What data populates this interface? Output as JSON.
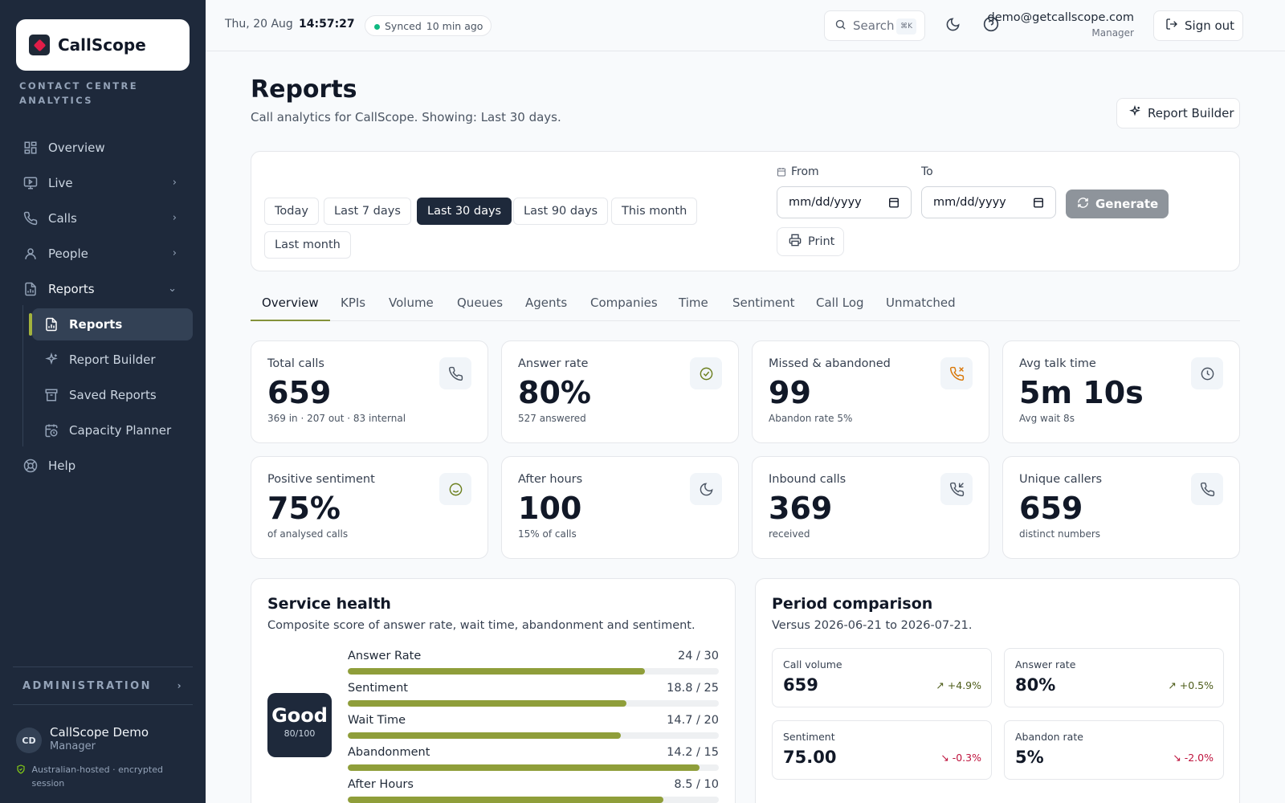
{
  "app": {
    "name": "CallScope",
    "tagline": "CONTACT CENTRE ANALYTICS"
  },
  "sidebar": {
    "items": [
      {
        "label": "Overview",
        "icon": "grid-icon"
      },
      {
        "label": "Live",
        "icon": "monitor-icon"
      },
      {
        "label": "Calls",
        "icon": "phone-icon"
      },
      {
        "label": "People",
        "icon": "users-icon"
      },
      {
        "label": "Reports",
        "icon": "report-icon"
      }
    ],
    "sub_items": [
      {
        "label": "Reports",
        "icon": "report-icon"
      },
      {
        "label": "Report Builder",
        "icon": "sparkle-icon"
      },
      {
        "label": "Saved Reports",
        "icon": "archive-icon"
      },
      {
        "label": "Capacity Planner",
        "icon": "calendar-clock-icon"
      }
    ],
    "help": "Help",
    "admin": "ADMINISTRATION",
    "user": {
      "initials": "CD",
      "name": "CallScope Demo",
      "role": "Manager"
    },
    "secure_note": "Australian-hosted · encrypted session"
  },
  "topbar": {
    "date": "Thu, 20 Aug",
    "time": "14:57:27",
    "sync_status": "Synced",
    "sync_age": "10 min ago",
    "search_label": "Search",
    "search_kbd": "⌘K",
    "email": "demo@getcallscope.com",
    "role": "Manager",
    "signout": "Sign out"
  },
  "page": {
    "title": "Reports",
    "subtitle": "Call analytics for CallScope. Showing: Last 30 days.",
    "report_builder": "Report Builder"
  },
  "filters": {
    "ranges": [
      "Today",
      "Last 7 days",
      "Last 30 days",
      "Last 90 days",
      "This month",
      "Last month"
    ],
    "active_range": "Last 30 days",
    "from_label": "From",
    "to_label": "To",
    "from_placeholder": "mm/dd/yyyy",
    "to_placeholder": "mm/dd/yyyy",
    "generate": "Generate",
    "print": "Print"
  },
  "tabs": [
    "Overview",
    "KPIs",
    "Volume",
    "Queues",
    "Agents",
    "Companies",
    "Time",
    "Sentiment",
    "Call Log",
    "Unmatched"
  ],
  "kpis": [
    {
      "label": "Total calls",
      "value": "659",
      "sub": "369 in · 207 out · 83 internal",
      "icon": "phone-icon",
      "icon_color": "#4b5563"
    },
    {
      "label": "Answer rate",
      "value": "80%",
      "sub": "527 answered",
      "icon": "check-circle-icon",
      "icon_color": "#6b7f1d"
    },
    {
      "label": "Missed & abandoned",
      "value": "99",
      "sub": "Abandon rate 5%",
      "icon": "phone-missed-icon",
      "icon_color": "#d97706"
    },
    {
      "label": "Avg talk time",
      "value": "5m 10s",
      "sub": "Avg wait 8s",
      "icon": "clock-icon",
      "icon_color": "#4b5563"
    },
    {
      "label": "Positive sentiment",
      "value": "75%",
      "sub": "of analysed calls",
      "icon": "smile-icon",
      "icon_color": "#6b7f1d"
    },
    {
      "label": "After hours",
      "value": "100",
      "sub": "15% of calls",
      "icon": "moon-icon",
      "icon_color": "#4b5563"
    },
    {
      "label": "Inbound calls",
      "value": "369",
      "sub": "received",
      "icon": "phone-incoming-icon",
      "icon_color": "#4b5563"
    },
    {
      "label": "Unique callers",
      "value": "659",
      "sub": "distinct numbers",
      "icon": "phone-icon",
      "icon_color": "#4b5563"
    }
  ],
  "health": {
    "title": "Service health",
    "subtitle": "Composite score of answer rate, wait time, abandonment and sentiment.",
    "grade": "Good",
    "score": "80/100",
    "rows": [
      {
        "label": "Answer Rate",
        "value": "24 / 30",
        "fraction": 0.8
      },
      {
        "label": "Sentiment",
        "value": "18.8 / 25",
        "fraction": 0.752
      },
      {
        "label": "Wait Time",
        "value": "14.7 / 20",
        "fraction": 0.735
      },
      {
        "label": "Abandonment",
        "value": "14.2 / 15",
        "fraction": 0.947
      },
      {
        "label": "After Hours",
        "value": "8.5 / 10",
        "fraction": 0.85
      }
    ]
  },
  "comparison": {
    "title": "Period comparison",
    "subtitle": "Versus 2026-06-21 to 2026-07-21.",
    "cards": [
      {
        "label": "Call volume",
        "value": "659",
        "delta": "+4.9%",
        "dir": "up"
      },
      {
        "label": "Answer rate",
        "value": "80%",
        "delta": "+0.5%",
        "dir": "up"
      },
      {
        "label": "Sentiment",
        "value": "75.00",
        "delta": "-0.3%",
        "dir": "down"
      },
      {
        "label": "Abandon rate",
        "value": "5%",
        "delta": "-2.0%",
        "dir": "down"
      }
    ]
  }
}
